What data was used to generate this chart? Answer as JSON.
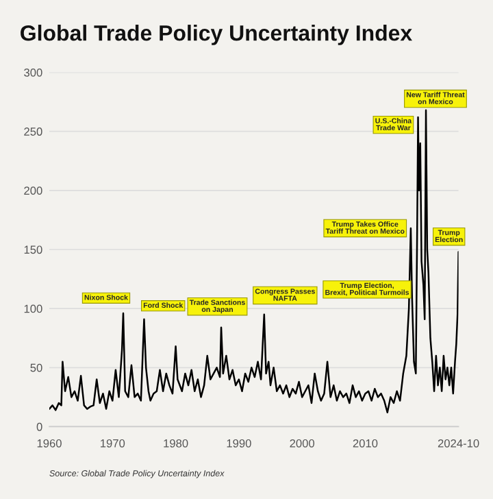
{
  "chart_data": {
    "type": "line",
    "title": "Global Trade Policy Uncertainty Index",
    "x": [
      1960,
      1960.5,
      1961,
      1961.5,
      1961.9,
      1962.1,
      1962.5,
      1963,
      1963.5,
      1964,
      1964.5,
      1965,
      1965.5,
      1966,
      1966.5,
      1967,
      1967.5,
      1968,
      1968.5,
      1969,
      1969.5,
      1970,
      1970.5,
      1971,
      1971.5,
      1971.7,
      1972,
      1972.5,
      1973,
      1973.5,
      1974,
      1974.5,
      1975,
      1975.3,
      1975.7,
      1976,
      1976.5,
      1977,
      1977.5,
      1978,
      1978.5,
      1979,
      1979.5,
      1980,
      1980.3,
      1981,
      1981.5,
      1982,
      1982.5,
      1983,
      1983.5,
      1984,
      1984.5,
      1985,
      1985.5,
      1986,
      1986.5,
      1987,
      1987.2,
      1987.5,
      1988,
      1988.5,
      1989,
      1989.5,
      1990,
      1990.5,
      1991,
      1991.5,
      1992,
      1992.5,
      1993,
      1993.5,
      1994,
      1994.3,
      1994.7,
      1995,
      1995.5,
      1996,
      1996.5,
      1997,
      1997.5,
      1998,
      1998.5,
      1999,
      1999.5,
      2000,
      2000.5,
      2001,
      2001.5,
      2002,
      2002.5,
      2003,
      2003.5,
      2004,
      2004.5,
      2005,
      2005.5,
      2006,
      2006.5,
      2007,
      2007.5,
      2008,
      2008.5,
      2009,
      2009.5,
      2010,
      2010.5,
      2011,
      2011.5,
      2012,
      2012.5,
      2013,
      2013.5,
      2014,
      2014.5,
      2015,
      2015.5,
      2016,
      2016.5,
      2016.9,
      2017.2,
      2017.4,
      2017.7,
      2018,
      2018.2,
      2018.35,
      2018.5,
      2018.7,
      2018.9,
      2019.2,
      2019.4,
      2019.6,
      2019.8,
      2020,
      2020.3,
      2020.6,
      2020.9,
      2021.2,
      2021.5,
      2021.8,
      2022.1,
      2022.4,
      2022.7,
      2023,
      2023.3,
      2023.6,
      2023.9,
      2024.2,
      2024.4,
      2024.6,
      2024.75
    ],
    "series": [
      {
        "color": "#000000",
        "values": [
          15,
          18,
          14,
          20,
          18,
          55,
          30,
          42,
          25,
          30,
          22,
          43,
          18,
          15,
          17,
          18,
          40,
          20,
          28,
          15,
          30,
          22,
          48,
          25,
          65,
          96,
          30,
          25,
          52,
          25,
          28,
          22,
          91,
          50,
          30,
          22,
          28,
          30,
          48,
          30,
          45,
          35,
          28,
          68,
          40,
          30,
          45,
          35,
          48,
          30,
          40,
          25,
          35,
          60,
          40,
          45,
          50,
          42,
          84,
          45,
          60,
          40,
          48,
          35,
          40,
          30,
          45,
          38,
          50,
          42,
          55,
          40,
          95,
          45,
          55,
          35,
          50,
          30,
          35,
          28,
          35,
          25,
          32,
          28,
          38,
          25,
          30,
          35,
          20,
          45,
          30,
          22,
          28,
          55,
          25,
          35,
          22,
          30,
          25,
          28,
          20,
          35,
          25,
          30,
          22,
          28,
          30,
          22,
          32,
          25,
          28,
          22,
          12,
          25,
          20,
          30,
          22,
          45,
          60,
          100,
          168,
          110,
          55,
          45,
          160,
          262,
          200,
          240,
          140,
          120,
          91,
          268,
          150,
          130,
          75,
          55,
          30,
          60,
          35,
          50,
          30,
          60,
          40,
          50,
          35,
          50,
          28,
          55,
          70,
          95,
          148
        ]
      }
    ],
    "xlim": [
      1960,
      2024.75
    ],
    "ylim": [
      0,
      300
    ],
    "xticks": [
      1960,
      1970,
      1980,
      1990,
      2000,
      2010,
      {
        "value": 2024.75,
        "label": "2024-10"
      }
    ],
    "yticks": [
      0,
      50,
      100,
      150,
      200,
      250,
      300
    ],
    "grid": "y",
    "line_style": "solid",
    "marker": "none",
    "annotations": [
      {
        "text": "Nixon Shock",
        "x": 1971.7,
        "y": 96
      },
      {
        "text": "Ford Shock",
        "x": 1975,
        "y": 91
      },
      {
        "text": "Trade Sanctions\non Japan",
        "x": 1987.2,
        "y": 84
      },
      {
        "text": "Congress Passes\nNAFTA",
        "x": 1994,
        "y": 95
      },
      {
        "text": "Trump Election,\nBrexit, Political Turmoils",
        "x": 2016.9,
        "y": 100
      },
      {
        "text": "Trump Takes Office\nTariff Threat on Mexico",
        "x": 2017.2,
        "y": 168
      },
      {
        "text": "U.S.-China\nTrade War",
        "x": 2018.35,
        "y": 262
      },
      {
        "text": "New Tariff Threat\non Mexico",
        "x": 2019.6,
        "y": 268
      },
      {
        "text": "Trump\nElection",
        "x": 2024.75,
        "y": 148
      },
      "Source: Global Trade Policy Uncertainty Index"
    ]
  }
}
